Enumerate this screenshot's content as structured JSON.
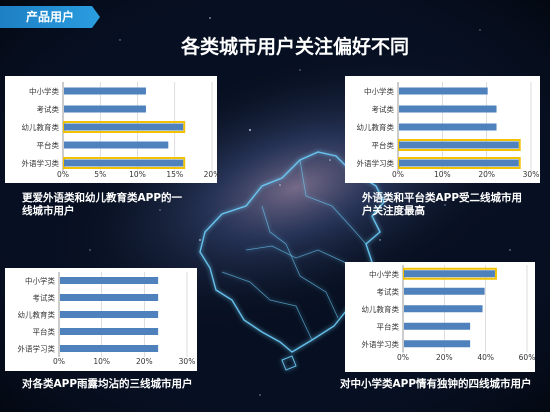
{
  "tag_label": "产品用户",
  "title": "各类城市用户关注偏好不同",
  "colors": {
    "bar": "#4f81bd",
    "highlight": "#f2c100",
    "panel": "#ffffff",
    "axis_text": "#333333"
  },
  "chart_data": [
    {
      "type": "bar",
      "orientation": "horizontal",
      "categories": [
        "中小学类",
        "考试类",
        "幼儿教育类",
        "平台类",
        "外语学习类"
      ],
      "values": [
        11,
        11,
        16,
        14,
        16
      ],
      "highlighted": [
        "幼儿教育类",
        "外语学习类"
      ],
      "xlim": [
        0,
        20
      ],
      "xticks": [
        "0%",
        "5%",
        "10%",
        "15%",
        "20%"
      ],
      "grid": true,
      "caption": "更爱外语类和幼儿教育类APP的一线城市用户"
    },
    {
      "type": "bar",
      "orientation": "horizontal",
      "categories": [
        "中小学类",
        "考试类",
        "幼儿教育类",
        "平台类",
        "外语学习类"
      ],
      "values": [
        20,
        22,
        22,
        27,
        27
      ],
      "highlighted": [
        "平台类",
        "外语学习类"
      ],
      "xlim": [
        0,
        30
      ],
      "xticks": [
        "0%",
        "10%",
        "20%",
        "30%"
      ],
      "grid": true,
      "caption": "外语类和平台类APP受二线城市用户关注度最高"
    },
    {
      "type": "bar",
      "orientation": "horizontal",
      "categories": [
        "中小学类",
        "考试类",
        "幼儿教育类",
        "平台类",
        "外语学习类"
      ],
      "values": [
        23,
        23,
        23,
        23,
        23
      ],
      "highlighted": [],
      "xlim": [
        0,
        30
      ],
      "xticks": [
        "0%",
        "10%",
        "20%",
        "30%"
      ],
      "grid": true,
      "caption": "对各类APP雨露均沾的三线城市用户"
    },
    {
      "type": "bar",
      "orientation": "horizontal",
      "categories": [
        "中小学类",
        "考试类",
        "幼儿教育类",
        "平台类",
        "外语学习类"
      ],
      "values": [
        44,
        39,
        38,
        32,
        32
      ],
      "highlighted": [
        "中小学类"
      ],
      "xlim": [
        0,
        60
      ],
      "xticks": [
        "0%",
        "20%",
        "40%",
        "60%"
      ],
      "grid": true,
      "caption": "对中小学类APP情有独钟的四线城市用户"
    }
  ]
}
